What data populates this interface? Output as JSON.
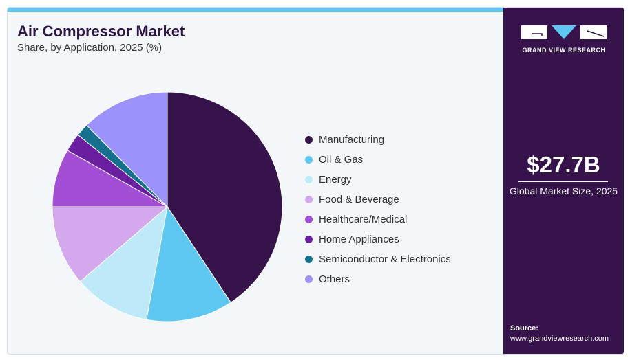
{
  "title": "Air Compressor Market",
  "subtitle": "Share, by Application, 2025 (%)",
  "brand": "GRAND VIEW RESEARCH",
  "market_size": "$27.7B",
  "market_label": "Global Market Size, 2025",
  "source_label": "Source:",
  "source_url": "www.grandviewresearch.com",
  "chart_data": {
    "type": "pie",
    "title": "Air Compressor Market",
    "subtitle": "Share, by Application, 2025 (%)",
    "legend_position": "right",
    "categories": [
      "Manufacturing",
      "Oil & Gas",
      "Energy",
      "Food & Beverage",
      "Healthcare/Medical",
      "Home Appliances",
      "Semiconductor & Electronics",
      "Others"
    ],
    "values": [
      40.7,
      12.2,
      10.8,
      11.3,
      8.2,
      2.6,
      1.8,
      12.4
    ],
    "colors": [
      "#36134a",
      "#5ec8f2",
      "#bde9f9",
      "#d3a8ec",
      "#a24fd6",
      "#6a1fa0",
      "#15708f",
      "#9b93fb"
    ]
  }
}
